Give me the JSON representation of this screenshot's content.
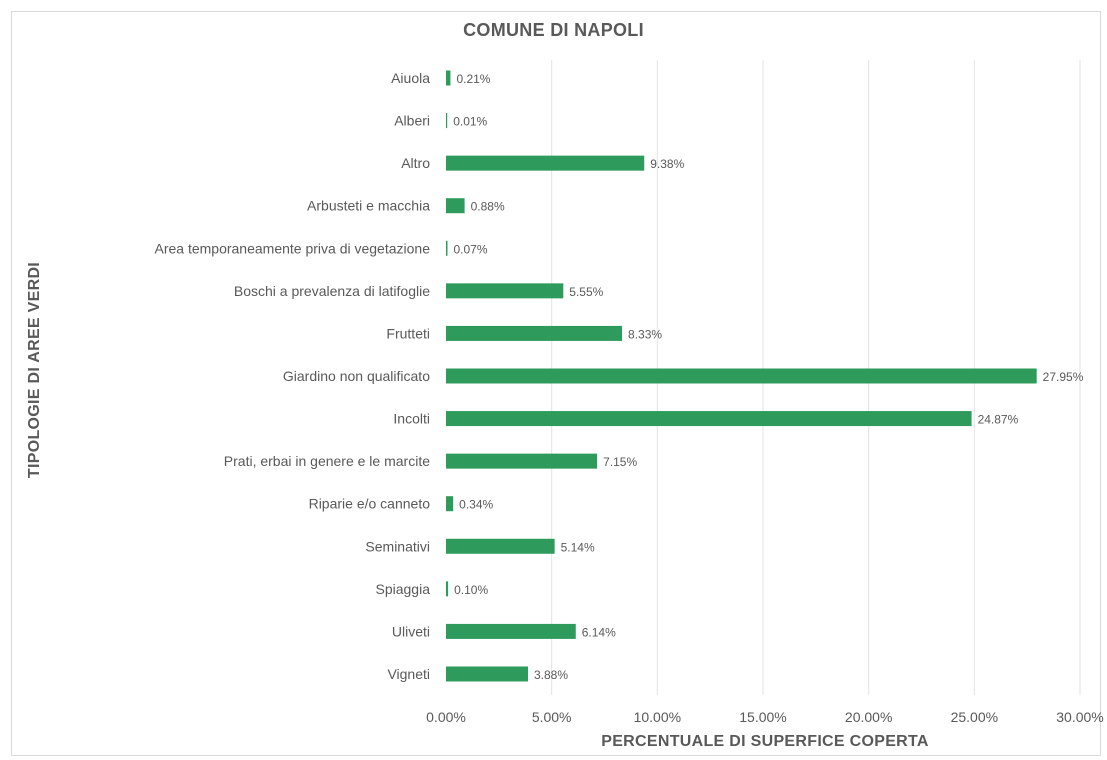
{
  "chart_data": {
    "type": "bar",
    "orientation": "horizontal",
    "title": "COMUNE DI NAPOLI",
    "xlabel": "PERCENTUALE DI SUPERFICE COPERTA",
    "ylabel": "TIPOLOGIE DI AREE VERDI",
    "xlim": [
      0,
      30
    ],
    "x_ticks": [
      "0.00%",
      "5.00%",
      "10.00%",
      "15.00%",
      "20.00%",
      "25.00%",
      "30.00%"
    ],
    "grid": true,
    "bar_color": "#2e9a5c",
    "categories": [
      "Aiuola",
      "Alberi",
      "Altro",
      "Arbusteti e macchia",
      "Area temporaneamente priva di vegetazione",
      "Boschi a prevalenza di latifoglie",
      "Frutteti",
      "Giardino non qualificato",
      "Incolti",
      "Prati, erbai in genere e le marcite",
      "Riparie e/o canneto",
      "Seminativi",
      "Spiaggia",
      "Uliveti",
      "Vigneti"
    ],
    "values": [
      0.21,
      0.01,
      9.38,
      0.88,
      0.07,
      5.55,
      8.33,
      27.95,
      24.87,
      7.15,
      0.34,
      5.14,
      0.1,
      6.14,
      3.88
    ],
    "data_labels": [
      "0.21%",
      "0.01%",
      "9.38%",
      "0.88%",
      "0.07%",
      "5.55%",
      "8.33%",
      "27.95%",
      "24.87%",
      "7.15%",
      "0.34%",
      "5.14%",
      "0.10%",
      "6.14%",
      "3.88%"
    ]
  }
}
